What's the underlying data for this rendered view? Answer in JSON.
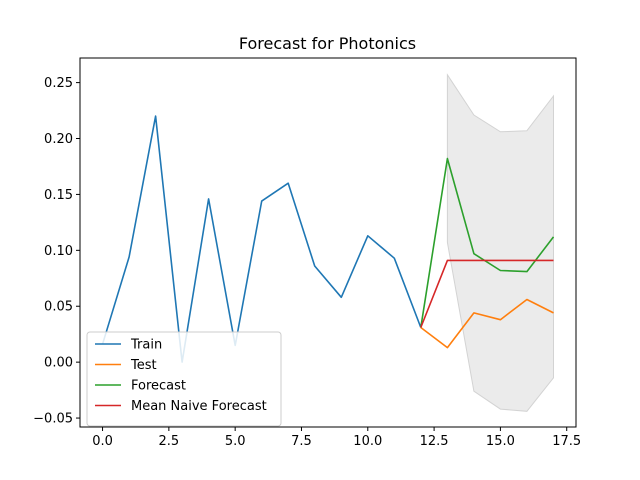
{
  "chart_data": {
    "type": "line",
    "title": "Forecast for Photonics",
    "xlabel": "",
    "ylabel": "",
    "xlim": [
      -0.85,
      17.85
    ],
    "ylim": [
      -0.058,
      0.272
    ],
    "x_ticks": [
      0.0,
      2.5,
      5.0,
      7.5,
      10.0,
      12.5,
      15.0,
      17.5
    ],
    "x_tick_labels": [
      "0.0",
      "2.5",
      "5.0",
      "7.5",
      "10.0",
      "12.5",
      "15.0",
      "17.5"
    ],
    "y_ticks": [
      -0.05,
      0.0,
      0.05,
      0.1,
      0.15,
      0.2,
      0.25
    ],
    "y_tick_labels": [
      "−0.05",
      "0.00",
      "0.05",
      "0.10",
      "0.15",
      "0.20",
      "0.25"
    ],
    "grid": false,
    "legend_position": "lower-left",
    "series": [
      {
        "name": "Train",
        "color": "#1f77b4",
        "x": [
          0,
          1,
          2,
          3,
          4,
          5,
          6,
          7,
          8,
          9,
          10,
          11,
          12
        ],
        "y": [
          0.016,
          0.094,
          0.22,
          0.0,
          0.146,
          0.015,
          0.144,
          0.16,
          0.086,
          0.058,
          0.113,
          0.093,
          0.031
        ]
      },
      {
        "name": "Test",
        "color": "#ff7f0e",
        "x": [
          12,
          13,
          14,
          15,
          16,
          17
        ],
        "y": [
          0.031,
          0.013,
          0.044,
          0.038,
          0.056,
          0.044
        ]
      },
      {
        "name": "Forecast",
        "color": "#2ca02c",
        "x": [
          12,
          13,
          14,
          15,
          16,
          17
        ],
        "y": [
          0.031,
          0.182,
          0.097,
          0.082,
          0.081,
          0.112
        ]
      },
      {
        "name": "Mean Naive Forecast",
        "color": "#d62728",
        "x": [
          12,
          13,
          14,
          15,
          16,
          17
        ],
        "y": [
          0.031,
          0.091,
          0.091,
          0.091,
          0.091,
          0.091
        ]
      }
    ],
    "confidence_band": {
      "color": "#d3d3d3",
      "x": [
        13,
        14,
        15,
        16,
        17
      ],
      "upper": [
        0.257,
        0.221,
        0.206,
        0.207,
        0.238
      ],
      "lower": [
        0.107,
        -0.026,
        -0.042,
        -0.044,
        -0.014
      ]
    }
  }
}
